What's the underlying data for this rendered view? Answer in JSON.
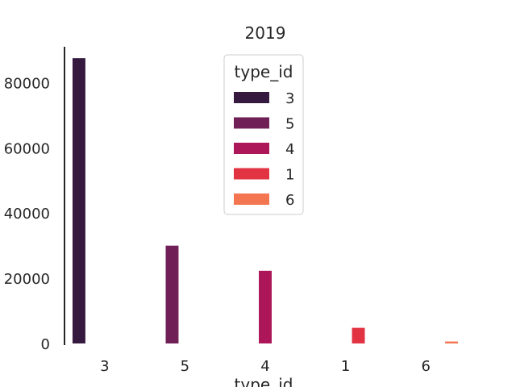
{
  "chart_data": {
    "type": "bar",
    "title": "2019",
    "xlabel": "type_id",
    "ylabel": "",
    "categories": [
      "3",
      "5",
      "4",
      "1",
      "6"
    ],
    "series": [
      {
        "name": "3",
        "color": "#35193e",
        "values": [
          87500,
          0,
          0,
          0,
          0
        ]
      },
      {
        "name": "5",
        "color": "#701f57",
        "values": [
          0,
          30000,
          0,
          0,
          0
        ]
      },
      {
        "name": "4",
        "color": "#ad1759",
        "values": [
          0,
          0,
          22300,
          0,
          0
        ]
      },
      {
        "name": "1",
        "color": "#e13342",
        "values": [
          0,
          0,
          0,
          4800,
          0
        ]
      },
      {
        "name": "6",
        "color": "#f37651",
        "values": [
          0,
          0,
          0,
          0,
          600
        ]
      }
    ],
    "ylim": [
      0,
      91000
    ],
    "yticks": [
      0,
      20000,
      40000,
      60000,
      80000
    ],
    "legend": {
      "title": "type_id",
      "placement": "top-center"
    },
    "grid": false
  }
}
